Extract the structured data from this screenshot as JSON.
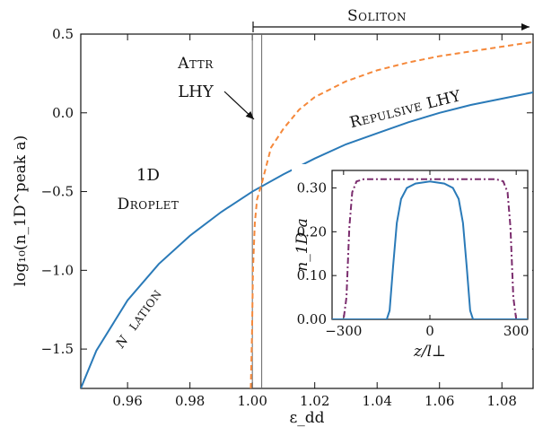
{
  "chart_data": {
    "type": "line",
    "main": {
      "xlabel": "ε_dd",
      "ylabel": "log₁₀(n_1D^peak a)",
      "xlim": [
        0.945,
        1.09
      ],
      "ylim": [
        -1.75,
        0.5
      ],
      "xticks": [
        "0.96",
        "0.98",
        "1.00",
        "1.02",
        "1.04",
        "1.06",
        "1.08"
      ],
      "yticks": [
        "0.5",
        "0.0",
        "−0.5",
        "−1.0",
        "−1.5"
      ],
      "vlines": [
        1.0,
        1.003
      ],
      "series": [
        {
          "style": "solid",
          "color": "#2a7ab8",
          "points": [
            [
              0.945,
              -1.75
            ],
            [
              0.95,
              -1.51
            ],
            [
              0.96,
              -1.19
            ],
            [
              0.97,
              -0.96
            ],
            [
              0.98,
              -0.78
            ],
            [
              0.99,
              -0.63
            ],
            [
              1.0,
              -0.5
            ],
            [
              1.01,
              -0.39
            ],
            [
              1.02,
              -0.29
            ],
            [
              1.03,
              -0.2
            ],
            [
              1.04,
              -0.13
            ],
            [
              1.05,
              -0.06
            ],
            [
              1.06,
              0.0
            ],
            [
              1.07,
              0.05
            ],
            [
              1.08,
              0.09
            ],
            [
              1.09,
              0.13
            ]
          ]
        },
        {
          "style": "dashed",
          "color": "#f5883a",
          "points": [
            [
              0.9995,
              -1.75
            ],
            [
              0.9999,
              -1.4
            ],
            [
              1.0002,
              -1.0
            ],
            [
              1.0008,
              -0.7
            ],
            [
              1.0015,
              -0.55
            ],
            [
              1.003,
              -0.45
            ],
            [
              1.006,
              -0.22
            ],
            [
              1.01,
              -0.1
            ],
            [
              1.015,
              0.02
            ],
            [
              1.02,
              0.1
            ],
            [
              1.03,
              0.2
            ],
            [
              1.04,
              0.27
            ],
            [
              1.05,
              0.32
            ],
            [
              1.06,
              0.36
            ],
            [
              1.07,
              0.39
            ],
            [
              1.08,
              0.42
            ],
            [
              1.09,
              0.45
            ]
          ]
        }
      ]
    },
    "inset": {
      "xlabel": "z/l⊥",
      "ylabel": "n_1D a",
      "xlim": [
        -340,
        340
      ],
      "ylim": [
        0,
        0.34
      ],
      "xticks": [
        "−300",
        "0",
        "300"
      ],
      "yticks": [
        "0.30",
        "0.20",
        "0.10",
        "0.00"
      ],
      "series": [
        {
          "style": "dashdot",
          "color": "#7b2d6e",
          "points": [
            [
              -340,
              0
            ],
            [
              -300,
              0
            ],
            [
              -290,
              0.05
            ],
            [
              -280,
              0.21
            ],
            [
              -270,
              0.29
            ],
            [
              -255,
              0.315
            ],
            [
              -230,
              0.32
            ],
            [
              230,
              0.32
            ],
            [
              255,
              0.315
            ],
            [
              270,
              0.29
            ],
            [
              280,
              0.21
            ],
            [
              290,
              0.05
            ],
            [
              300,
              0
            ],
            [
              340,
              0
            ]
          ]
        },
        {
          "style": "solid",
          "color": "#2a7ab8",
          "points": [
            [
              -340,
              0
            ],
            [
              -150,
              0
            ],
            [
              -140,
              0.02
            ],
            [
              -128,
              0.12
            ],
            [
              -115,
              0.22
            ],
            [
              -100,
              0.275
            ],
            [
              -80,
              0.3
            ],
            [
              -50,
              0.31
            ],
            [
              0,
              0.315
            ],
            [
              50,
              0.31
            ],
            [
              80,
              0.3
            ],
            [
              100,
              0.275
            ],
            [
              115,
              0.22
            ],
            [
              128,
              0.12
            ],
            [
              140,
              0.02
            ],
            [
              150,
              0
            ],
            [
              340,
              0
            ]
          ]
        }
      ]
    },
    "annotations": {
      "soliton": "Soliton",
      "attr_line1": "Attr",
      "attr_line2": "LHY",
      "repulsive": "Repulsive LHY",
      "droplet_line1": "1D",
      "droplet_line2": "Droplet",
      "lation_prefix": "N",
      "lation": "lation"
    }
  }
}
